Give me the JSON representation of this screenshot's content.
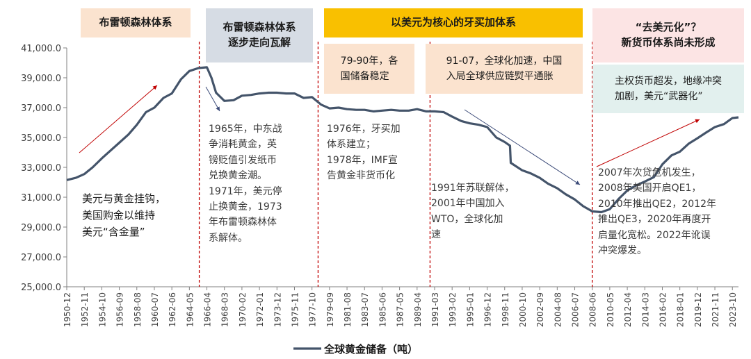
{
  "colors": {
    "line": "#44546a",
    "era1_bg": "#fbe3cf",
    "era2_bg": "#d6dce4",
    "era3_bg": "#f9c000",
    "era4_bg": "#fce4e4",
    "sub_orange_bg": "#fbe3cf",
    "sub_teal_bg": "#e2f0ee",
    "divider": "#c00000",
    "arrow_red": "#c00000",
    "arrow_blue": "#3b4a78"
  },
  "eras": [
    {
      "label": "布雷顿森林体系"
    },
    {
      "label": "布雷顿森林体系\n逐步走向瓦解"
    },
    {
      "label": "以美元为核心的牙买加体系"
    },
    {
      "label": "“去美元化”？\n新货币体系尚未形成"
    }
  ],
  "sub_boxes": [
    {
      "text": "79-90年，各\n国储备稳定"
    },
    {
      "text": "91-07，全球化加速，中国\n入局全球供应链熨平通胀"
    },
    {
      "text": "主权货币超发，地缘冲突\n加剧，美元“武器化”"
    }
  ],
  "notes": [
    {
      "text": "美元与黄金挂钩，\n美国购金以维持\n美元“含金量”"
    },
    {
      "text": "1965年，中东战\n争消耗黄金，英\n镑贬值引发纸币\n兑换黄金潮。\n1971年，美元停\n止换黄金，1973\n年布雷顿森林体\n系解体。"
    },
    {
      "text": "1976年，牙买加\n体系建立；\n1978年，IMF宣\n告黄金非货币化"
    },
    {
      "text": "1991年苏联解体，\n2001年中国加入\nWTO，全球化加\n速"
    },
    {
      "text": "2007年次贷危机发生，\n2008年美国开启QE1，\n2010年推出QE2，2012年\n推出QE3，2020年再度开\n启量化宽松。2022年讹误\n冲突爆发。"
    }
  ],
  "chart_data": {
    "type": "line",
    "series": [
      {
        "name": "全球黄金储备（吨）"
      }
    ],
    "ylim": [
      25000,
      41000
    ],
    "yticks": [
      "25,000.0",
      "27,000.0",
      "29,000.0",
      "31,000.0",
      "33,000.0",
      "35,000.0",
      "37,000.0",
      "39,000.0",
      "41,000.0"
    ],
    "xticks": [
      "1950-12",
      "1952-11",
      "1954-10",
      "1956-09",
      "1958-08",
      "1960-07",
      "1962-06",
      "1964-05",
      "1966-04",
      "1968-03",
      "1970-02",
      "1972-01",
      "1973-12",
      "1975-11",
      "1977-10",
      "1979-09",
      "1981-08",
      "1983-07",
      "1985-06",
      "1987-05",
      "1989-04",
      "1991-03",
      "1993-02",
      "1995-01",
      "1996-12",
      "1998-11",
      "2000-10",
      "2002-09",
      "2004-08",
      "2006-07",
      "2008-06",
      "2010-05",
      "2012-04",
      "2014-03",
      "2016-02",
      "2018-01",
      "2019-12",
      "2021-11",
      "2023-10"
    ],
    "points": [
      [
        "1950-12",
        32150
      ],
      [
        "1951-12",
        32300
      ],
      [
        "1952-11",
        32550
      ],
      [
        "1953-10",
        33000
      ],
      [
        "1954-10",
        33600
      ],
      [
        "1955-10",
        34150
      ],
      [
        "1956-09",
        34650
      ],
      [
        "1957-09",
        35200
      ],
      [
        "1958-08",
        35850
      ],
      [
        "1959-08",
        36700
      ],
      [
        "1960-07",
        37000
      ],
      [
        "1961-07",
        37650
      ],
      [
        "1962-06",
        37950
      ],
      [
        "1963-06",
        38900
      ],
      [
        "1964-05",
        39450
      ],
      [
        "1965-05",
        39650
      ],
      [
        "1966-04",
        39700
      ],
      [
        "1966-10",
        39000
      ],
      [
        "1967-04",
        38000
      ],
      [
        "1968-03",
        37450
      ],
      [
        "1969-03",
        37500
      ],
      [
        "1970-02",
        37800
      ],
      [
        "1971-02",
        37850
      ],
      [
        "1972-01",
        37950
      ],
      [
        "1973-01",
        38000
      ],
      [
        "1973-12",
        38000
      ],
      [
        "1974-12",
        37950
      ],
      [
        "1975-11",
        37950
      ],
      [
        "1976-11",
        37650
      ],
      [
        "1977-10",
        37700
      ],
      [
        "1978-10",
        37200
      ],
      [
        "1979-09",
        36950
      ],
      [
        "1980-09",
        37000
      ],
      [
        "1981-08",
        36900
      ],
      [
        "1982-08",
        36850
      ],
      [
        "1983-07",
        36850
      ],
      [
        "1984-07",
        36750
      ],
      [
        "1985-06",
        36800
      ],
      [
        "1986-06",
        36850
      ],
      [
        "1987-05",
        36800
      ],
      [
        "1988-05",
        36800
      ],
      [
        "1989-04",
        36900
      ],
      [
        "1990-04",
        36750
      ],
      [
        "1991-03",
        36750
      ],
      [
        "1992-03",
        36700
      ],
      [
        "1993-02",
        36400
      ],
      [
        "1994-02",
        36100
      ],
      [
        "1995-01",
        35950
      ],
      [
        "1996-01",
        35850
      ],
      [
        "1996-12",
        35700
      ],
      [
        "1997-12",
        35000
      ],
      [
        "1998-11",
        34700
      ],
      [
        "1999-06",
        34450
      ],
      [
        "1999-07",
        33300
      ],
      [
        "2000-10",
        32800
      ],
      [
        "2001-09",
        32600
      ],
      [
        "2002-09",
        32300
      ],
      [
        "2003-08",
        31900
      ],
      [
        "2004-08",
        31600
      ],
      [
        "2005-07",
        31200
      ],
      [
        "2006-07",
        30850
      ],
      [
        "2007-06",
        30400
      ],
      [
        "2008-06",
        30050
      ],
      [
        "2009-06",
        30000
      ],
      [
        "2010-05",
        30200
      ],
      [
        "2011-05",
        30900
      ],
      [
        "2012-04",
        31450
      ],
      [
        "2013-04",
        31800
      ],
      [
        "2014-03",
        32050
      ],
      [
        "2015-03",
        32350
      ],
      [
        "2016-02",
        33200
      ],
      [
        "2017-02",
        33800
      ],
      [
        "2018-01",
        34050
      ],
      [
        "2019-01",
        34600
      ],
      [
        "2019-12",
        34950
      ],
      [
        "2020-12",
        35350
      ],
      [
        "2021-11",
        35700
      ],
      [
        "2022-11",
        35900
      ],
      [
        "2023-10",
        36300
      ],
      [
        "2024-06",
        36350
      ]
    ]
  }
}
